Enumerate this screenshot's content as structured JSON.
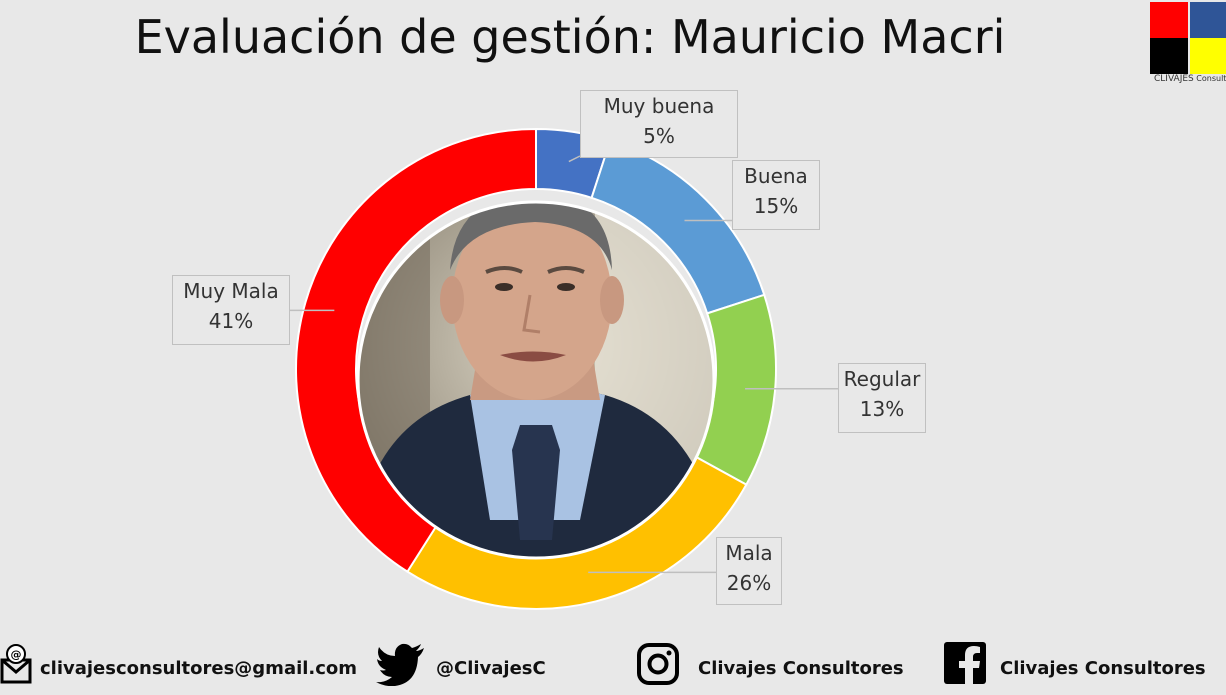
{
  "title": "Evaluación de gestión: Mauricio Macri",
  "logo": {
    "name": "CLIVAJES",
    "sub": "Consultores",
    "colors": [
      "#ff0000",
      "#2f5597",
      "#000000",
      "#ffff00"
    ]
  },
  "chart_data": {
    "type": "pie",
    "title": "Evaluación de gestión: Mauricio Macri",
    "categories": [
      "Muy buena",
      "Buena",
      "Regular",
      "Mala",
      "Muy Mala"
    ],
    "values": [
      5,
      15,
      13,
      26,
      41
    ],
    "value_labels": [
      "5%",
      "15%",
      "13%",
      "26%",
      "41%"
    ],
    "colors": [
      "#4472c4",
      "#5b9bd5",
      "#92d050",
      "#ffc000",
      "#ff0000"
    ],
    "donut": true
  },
  "footer": {
    "email": "clivajesconsultores@gmail.com",
    "twitter": "@ClivajesC",
    "instagram": "Clivajes Consultores",
    "facebook": "Clivajes Consultores"
  },
  "icons": [
    "email-icon",
    "twitter-icon",
    "instagram-icon",
    "facebook-icon"
  ]
}
